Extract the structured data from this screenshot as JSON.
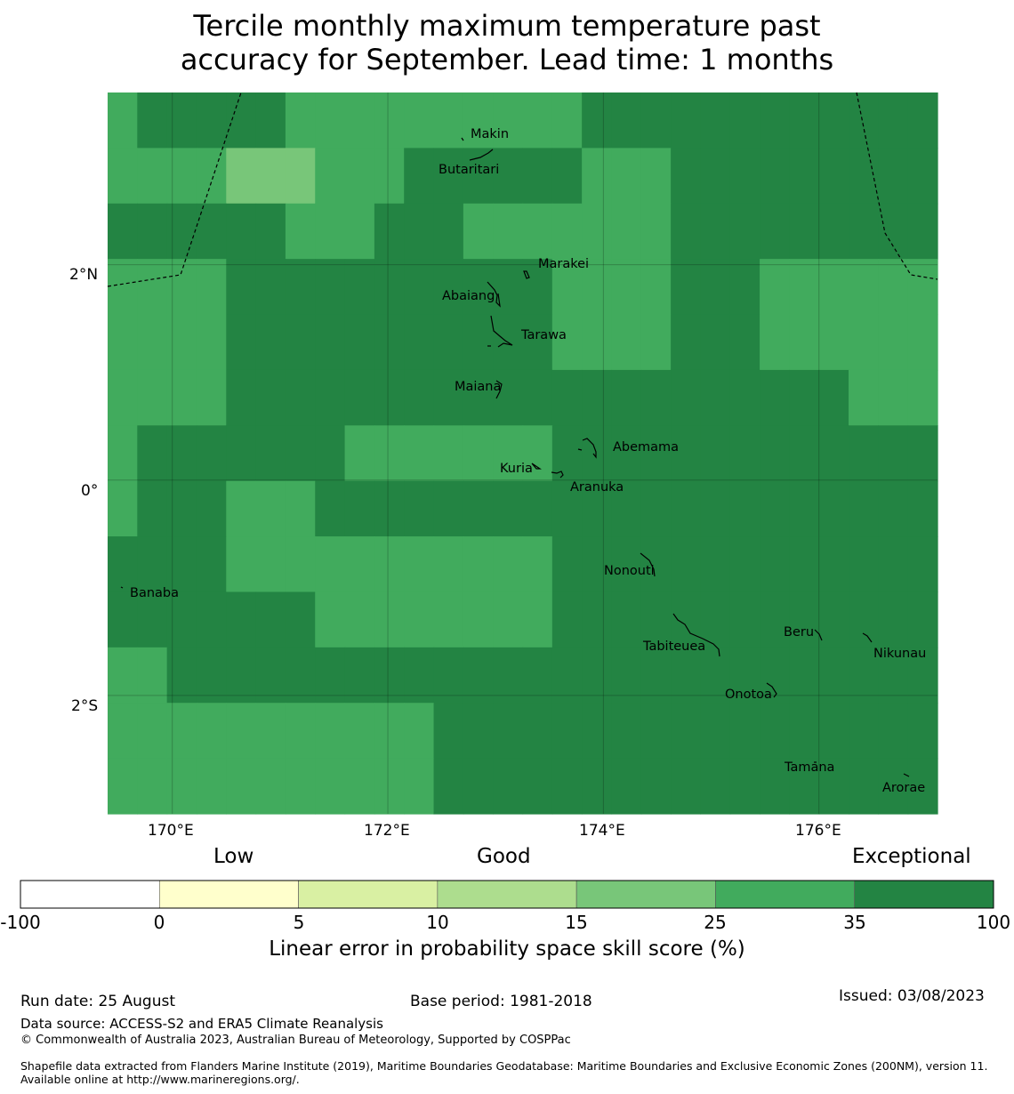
{
  "title": {
    "line1": "Tercile monthly maximum temperature past",
    "line2": "accuracy for September. Lead time: 1 months"
  },
  "map": {
    "lat_labels": [
      "2°N",
      "0°",
      "2°S"
    ],
    "lon_labels": [
      "170°E",
      "172°E",
      "174°E",
      "176°E"
    ],
    "islands": [
      {
        "name": "Makin",
        "lon": 172.97,
        "lat": 3.3
      },
      {
        "name": "Butaritari",
        "lon": 172.82,
        "lat": 3.07
      },
      {
        "name": "Marakei",
        "lon": 173.28,
        "lat": 2.0
      },
      {
        "name": "Abaiang",
        "lon": 173.0,
        "lat": 1.8
      },
      {
        "name": "Tarawa",
        "lon": 173.05,
        "lat": 1.4
      },
      {
        "name": "Maiana",
        "lon": 173.0,
        "lat": 0.95
      },
      {
        "name": "Abemama",
        "lon": 173.9,
        "lat": 0.4
      },
      {
        "name": "Kuria",
        "lon": 173.4,
        "lat": 0.22
      },
      {
        "name": "Aranuka",
        "lon": 173.6,
        "lat": 0.17
      },
      {
        "name": "Nonouti",
        "lon": 174.4,
        "lat": -0.67
      },
      {
        "name": "Banaba",
        "lon": 169.53,
        "lat": -0.88
      },
      {
        "name": "Tabiteuea",
        "lon": 174.8,
        "lat": -1.4
      },
      {
        "name": "Beru",
        "lon": 176.0,
        "lat": -1.33
      },
      {
        "name": "Nikunau",
        "lon": 176.45,
        "lat": -1.38
      },
      {
        "name": "Onotoa",
        "lon": 175.55,
        "lat": -1.82
      },
      {
        "name": "Tamana",
        "lon": 175.97,
        "lat": -2.5
      },
      {
        "name": "Arorae",
        "lon": 176.82,
        "lat": -2.65
      }
    ],
    "skill_grid": [
      [
        5,
        6,
        6,
        6,
        6,
        6,
        5,
        5,
        5,
        5,
        5,
        5,
        5,
        5,
        5,
        5,
        6,
        6,
        6,
        6,
        6,
        6,
        6,
        6,
        6,
        6,
        6,
        6
      ],
      [
        5,
        5,
        5,
        5,
        4,
        4,
        4,
        5,
        5,
        5,
        6,
        6,
        6,
        6,
        6,
        6,
        5,
        5,
        5,
        6,
        6,
        6,
        6,
        6,
        6,
        6,
        6,
        6
      ],
      [
        6,
        6,
        6,
        6,
        6,
        6,
        5,
        5,
        5,
        6,
        6,
        6,
        5,
        5,
        5,
        5,
        5,
        5,
        5,
        6,
        6,
        6,
        6,
        6,
        6,
        6,
        6,
        6
      ],
      [
        5,
        5,
        5,
        5,
        6,
        6,
        6,
        6,
        6,
        6,
        6,
        6,
        6,
        6,
        6,
        5,
        5,
        5,
        5,
        6,
        6,
        6,
        5,
        5,
        5,
        5,
        5,
        5
      ],
      [
        5,
        5,
        5,
        5,
        6,
        6,
        6,
        6,
        6,
        6,
        6,
        6,
        6,
        6,
        6,
        5,
        5,
        5,
        5,
        6,
        6,
        6,
        5,
        5,
        5,
        5,
        5,
        5
      ],
      [
        5,
        5,
        5,
        5,
        6,
        6,
        6,
        6,
        6,
        6,
        6,
        6,
        6,
        6,
        6,
        6,
        6,
        6,
        6,
        6,
        6,
        6,
        6,
        6,
        6,
        5,
        5,
        5
      ],
      [
        5,
        6,
        6,
        6,
        6,
        6,
        6,
        6,
        5,
        5,
        5,
        5,
        5,
        5,
        5,
        6,
        6,
        6,
        6,
        6,
        6,
        6,
        6,
        6,
        6,
        6,
        6,
        6
      ],
      [
        5,
        6,
        6,
        6,
        5,
        5,
        5,
        6,
        6,
        6,
        6,
        6,
        6,
        6,
        6,
        6,
        6,
        6,
        6,
        6,
        6,
        6,
        6,
        6,
        6,
        6,
        6,
        6
      ],
      [
        6,
        6,
        6,
        6,
        5,
        5,
        5,
        5,
        5,
        5,
        5,
        5,
        5,
        5,
        5,
        6,
        6,
        6,
        6,
        6,
        6,
        6,
        6,
        6,
        6,
        6,
        6,
        6
      ],
      [
        6,
        6,
        6,
        6,
        6,
        6,
        6,
        5,
        5,
        5,
        5,
        5,
        5,
        5,
        5,
        6,
        6,
        6,
        6,
        6,
        6,
        6,
        6,
        6,
        6,
        6,
        6,
        6
      ],
      [
        5,
        5,
        6,
        6,
        6,
        6,
        6,
        6,
        6,
        6,
        6,
        6,
        6,
        6,
        6,
        6,
        6,
        6,
        6,
        6,
        6,
        6,
        6,
        6,
        6,
        6,
        6,
        6
      ],
      [
        5,
        5,
        5,
        5,
        5,
        5,
        5,
        5,
        5,
        5,
        5,
        6,
        6,
        6,
        6,
        6,
        6,
        6,
        6,
        6,
        6,
        6,
        6,
        6,
        6,
        6,
        6,
        6
      ],
      [
        5,
        5,
        5,
        5,
        5,
        5,
        5,
        5,
        5,
        5,
        5,
        6,
        6,
        6,
        6,
        6,
        6,
        6,
        6,
        6,
        6,
        6,
        6,
        6,
        6,
        6,
        6,
        6
      ]
    ]
  },
  "colorbar": {
    "category_labels": [
      "Low",
      "Good",
      "Exceptional"
    ],
    "bins": [
      {
        "from": -100,
        "to": 0,
        "color": "#ffffff"
      },
      {
        "from": 0,
        "to": 5,
        "color": "#ffffcc"
      },
      {
        "from": 5,
        "to": 10,
        "color": "#d9f0a3"
      },
      {
        "from": 10,
        "to": 15,
        "color": "#addd8e"
      },
      {
        "from": 15,
        "to": 25,
        "color": "#78c679"
      },
      {
        "from": 25,
        "to": 35,
        "color": "#41ab5d"
      },
      {
        "from": 35,
        "to": 100,
        "color": "#238443"
      }
    ],
    "tick_labels": [
      "-100",
      "0",
      "5",
      "10",
      "15",
      "25",
      "35",
      "100"
    ],
    "title": "Linear error in probability space skill score (%)"
  },
  "footer": {
    "run_date": "Run date: 25 August",
    "base_period": "Base period: 1981-2018",
    "issued": "Issued: 03/08/2023",
    "data_source": "Data source: ACCESS-S2 and ERA5 Climate Reanalysis",
    "copyright": "© Commonwealth of Australia 2023, Australian Bureau of Meteorology, Supported by COSPPac",
    "shapefile_note": "Shapefile data extracted from Flanders Marine Institute (2019), Maritime Boundaries Geodatabase: Maritime Boundaries and Exclusive Economic Zones (200NM), version 11. Available online at http://www.marineregions.org/."
  }
}
